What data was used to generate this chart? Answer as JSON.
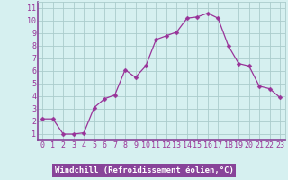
{
  "x": [
    0,
    1,
    2,
    3,
    4,
    5,
    6,
    7,
    8,
    9,
    10,
    11,
    12,
    13,
    14,
    15,
    16,
    17,
    18,
    19,
    20,
    21,
    22,
    23
  ],
  "y": [
    2.2,
    2.2,
    1.0,
    1.0,
    1.1,
    3.1,
    3.8,
    4.1,
    6.1,
    5.5,
    6.4,
    8.5,
    8.8,
    9.1,
    10.2,
    10.3,
    10.6,
    10.2,
    8.0,
    6.6,
    6.4,
    4.8,
    4.6,
    3.9
  ],
  "line_color": "#993399",
  "marker": "D",
  "marker_size": 2.5,
  "bg_color": "#d6f0f0",
  "grid_color": "#aacccc",
  "xlabel": "Windchill (Refroidissement éolien,°C)",
  "xlabel_bg": "#884499",
  "xlabel_color": "#ffffff",
  "ylabel_ticks": [
    1,
    2,
    3,
    4,
    5,
    6,
    7,
    8,
    9,
    10,
    11
  ],
  "xlim": [
    -0.5,
    23.5
  ],
  "ylim": [
    0.5,
    11.5
  ],
  "xtick_labels": [
    "0",
    "1",
    "2",
    "3",
    "4",
    "5",
    "6",
    "7",
    "8",
    "9",
    "10",
    "11",
    "12",
    "13",
    "14",
    "15",
    "16",
    "17",
    "18",
    "19",
    "20",
    "21",
    "22",
    "23"
  ],
  "tick_fontsize": 6.0,
  "label_fontsize": 6.5,
  "spine_color": "#884499",
  "border_color": "#884499"
}
